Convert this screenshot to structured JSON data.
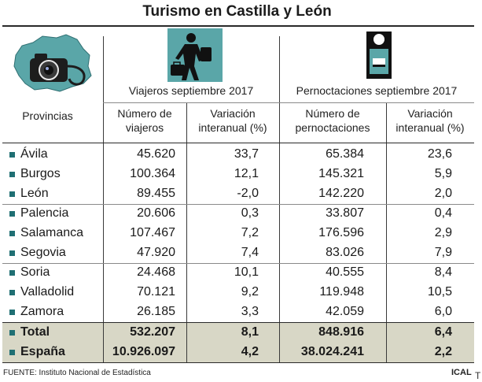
{
  "title": "Turismo en Castilla y León",
  "group_headers": {
    "viajeros": "Viajeros septiembre 2017",
    "pernoctaciones": "Pernoctaciones septiembre 2017"
  },
  "columns": {
    "provincias": "Provincias",
    "num_viajeros": [
      "Número de",
      "viajeros"
    ],
    "var_viajeros": [
      "Variación",
      "interanual (%)"
    ],
    "num_pernoctaciones": [
      "Número de",
      "pernoctaciones"
    ],
    "var_pernoctaciones": [
      "Variación",
      "interanual (%)"
    ]
  },
  "rows": [
    {
      "provincia": "Ávila",
      "viajeros": "45.620",
      "var_v": "33,7",
      "pernoctaciones": "65.384",
      "var_p": "23,6"
    },
    {
      "provincia": "Burgos",
      "viajeros": "100.364",
      "var_v": "12,1",
      "pernoctaciones": "145.321",
      "var_p": "5,9"
    },
    {
      "provincia": "León",
      "viajeros": "89.455",
      "var_v": "-2,0",
      "pernoctaciones": "142.220",
      "var_p": "2,0"
    },
    {
      "provincia": "Palencia",
      "viajeros": "20.606",
      "var_v": "0,3",
      "pernoctaciones": "33.807",
      "var_p": "0,4"
    },
    {
      "provincia": "Salamanca",
      "viajeros": "107.467",
      "var_v": "7,2",
      "pernoctaciones": "176.596",
      "var_p": "2,9"
    },
    {
      "provincia": "Segovia",
      "viajeros": "47.920",
      "var_v": "7,4",
      "pernoctaciones": "83.026",
      "var_p": "7,9"
    },
    {
      "provincia": "Soria",
      "viajeros": "24.468",
      "var_v": "10,1",
      "pernoctaciones": "40.555",
      "var_p": "8,4"
    },
    {
      "provincia": "Valladolid",
      "viajeros": "70.121",
      "var_v": "9,2",
      "pernoctaciones": "119.948",
      "var_p": "10,5"
    },
    {
      "provincia": "Zamora",
      "viajeros": "26.185",
      "var_v": "3,3",
      "pernoctaciones": "42.059",
      "var_p": "6,0"
    }
  ],
  "totals": [
    {
      "provincia": "Total",
      "viajeros": "532.207",
      "var_v": "8,1",
      "pernoctaciones": "848.916",
      "var_p": "6,4"
    },
    {
      "provincia": "España",
      "viajeros": "10.926.097",
      "var_v": "4,2",
      "pernoctaciones": "38.024.241",
      "var_p": "2,2"
    }
  ],
  "footer": "FUENTE: Instituto Nacional de Estadística",
  "credit": "ICAL",
  "corner_mark": "T",
  "colors": {
    "accent": "#1f6f73",
    "total_band": "#d8d7c6"
  },
  "icons": [
    "camera-map-icon",
    "traveler-icon",
    "hotel-door-hanger-icon"
  ]
}
